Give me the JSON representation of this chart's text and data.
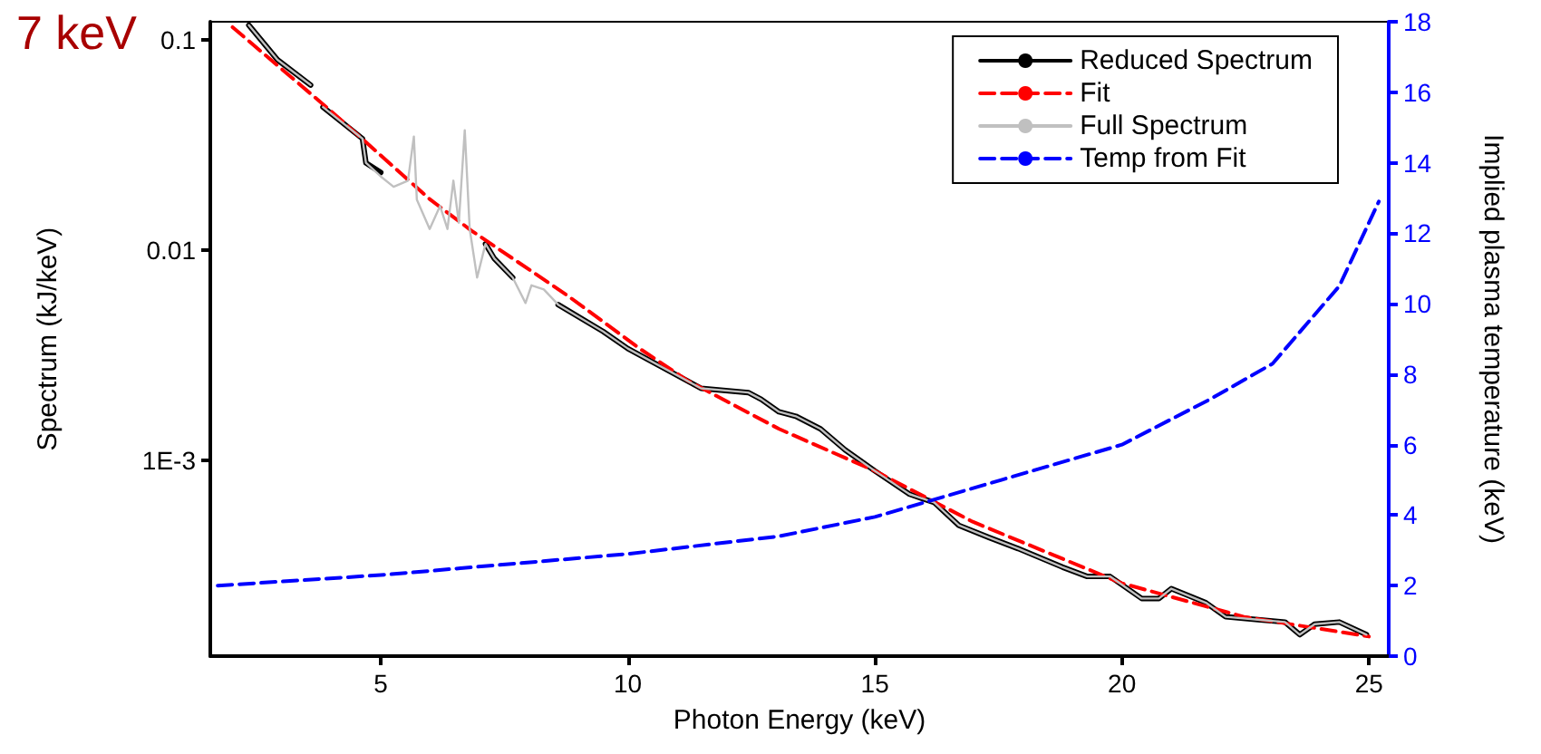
{
  "chart_data": {
    "type": "line",
    "title": "7 keV",
    "xlabel": "Photon Energy (keV)",
    "ylabel": "Spectrum (kJ/keV)",
    "y2label": "Implied plasma temperature (keV)",
    "log": "y",
    "grid": false,
    "legend": "top right",
    "marker": "none",
    "xlim": [
      1.55,
      25.4
    ],
    "xticks": [
      5,
      10,
      15,
      20,
      25
    ],
    "ylim": [
      0.000117,
      0.122
    ],
    "yticks": [
      0.1,
      0.01,
      {
        "value": 0.001,
        "label": "1E-3"
      }
    ],
    "y2lim": [
      0,
      18
    ],
    "y2ticks": [
      0,
      2,
      4,
      6,
      8,
      10,
      12,
      14,
      16,
      18
    ],
    "series": [
      {
        "name": "Reduced Spectrum",
        "color": "#000000",
        "line_style": "solid",
        "x": [
          2.33,
          2.91,
          3.58,
          3.7,
          3.83,
          4.63,
          4.7,
          5.0,
          6.0,
          7.12,
          7.3,
          7.67,
          8.1,
          8.59,
          9.5,
          10.0,
          11.48,
          12.44,
          12.7,
          13.06,
          13.4,
          13.9,
          14.4,
          15,
          15.7,
          16.2,
          16.7,
          17.3,
          17.9,
          18.8,
          19.3,
          19.76,
          20.4,
          20.75,
          21.0,
          21.7,
          22.1,
          22.8,
          23.3,
          23.6,
          23.9,
          24.4,
          24.95
        ],
        "values": [
          0.1175,
          0.0804,
          0.061,
          null,
          0.0479,
          0.0339,
          0.026,
          0.0234,
          null,
          0.0107,
          0.0091,
          0.0074,
          null,
          0.0055,
          0.0041,
          0.0034,
          0.0022,
          0.0021,
          0.00195,
          0.0017,
          0.00162,
          0.00141,
          0.00112,
          0.00089,
          0.00069,
          0.00063,
          0.00049,
          0.00043,
          0.00038,
          0.00031,
          0.00028,
          0.00028,
          0.00022,
          0.00022,
          0.000245,
          0.00021,
          0.00018,
          0.000174,
          0.00017,
          0.000148,
          0.000166,
          0.00017,
          0.000148
        ]
      },
      {
        "name": "Fit",
        "color": "#ff0000",
        "line_style": "dashed",
        "x": [
          2,
          4,
          6,
          6.83,
          8.77,
          10.24,
          11.2,
          13.06,
          15,
          16.98,
          20,
          22.47,
          25
        ],
        "values": [
          0.115,
          0.0457,
          0.0174,
          0.0124,
          0.0061,
          0.0034,
          0.0024,
          0.00141,
          0.00089,
          0.00051,
          0.00026,
          0.00018,
          0.000145
        ]
      },
      {
        "name": "Full Spectrum",
        "color": "#c0c0c0",
        "line_style": "solid",
        "x": [
          2.33,
          2.91,
          3.58,
          3.7,
          3.83,
          4.63,
          4.7,
          5.0,
          5.26,
          5.55,
          5.67,
          5.73,
          5.99,
          6.2,
          6.35,
          6.47,
          6.58,
          6.7,
          6.8,
          6.95,
          7.12,
          7.3,
          7.67,
          7.93,
          8.05,
          8.3,
          8.59,
          9.5,
          10.0,
          11.48,
          12.44,
          12.7,
          13.06,
          13.4,
          13.9,
          14.4,
          15,
          15.7,
          16.2,
          16.7,
          17.3,
          17.9,
          18.8,
          19.3,
          19.76,
          20.4,
          20.75,
          21.0,
          21.7,
          22.1,
          22.8,
          23.3,
          23.6,
          23.9,
          24.4,
          24.95
        ],
        "values": [
          0.1175,
          0.0804,
          0.061,
          null,
          0.0479,
          0.0339,
          0.026,
          0.0224,
          0.02,
          0.0214,
          0.0347,
          0.0174,
          0.0126,
          0.0162,
          0.0126,
          0.0214,
          0.0135,
          0.0372,
          0.0126,
          0.0074,
          0.0107,
          0.0091,
          0.0074,
          0.0056,
          0.0068,
          0.0065,
          0.0055,
          0.0041,
          0.0034,
          0.0022,
          0.0021,
          0.00195,
          0.0017,
          0.00162,
          0.00141,
          0.00112,
          0.00089,
          0.00069,
          0.00063,
          0.00049,
          0.00043,
          0.00038,
          0.00031,
          0.00028,
          0.00028,
          0.00022,
          0.00022,
          0.000245,
          0.00021,
          0.00018,
          0.000174,
          0.00017,
          0.000148,
          0.000166,
          0.00017,
          0.000148
        ]
      },
      {
        "name": "Temp from Fit",
        "color": "#0000ff",
        "line_style": "dashed",
        "axis": "y2",
        "x": [
          1.7,
          5,
          10,
          13.06,
          15,
          17.56,
          20,
          21.8,
          23.05,
          24.4,
          25.2
        ],
        "values": [
          2.0,
          2.3,
          2.9,
          3.4,
          3.95,
          5.0,
          6.0,
          7.3,
          8.3,
          10.5,
          12.9
        ]
      }
    ]
  }
}
